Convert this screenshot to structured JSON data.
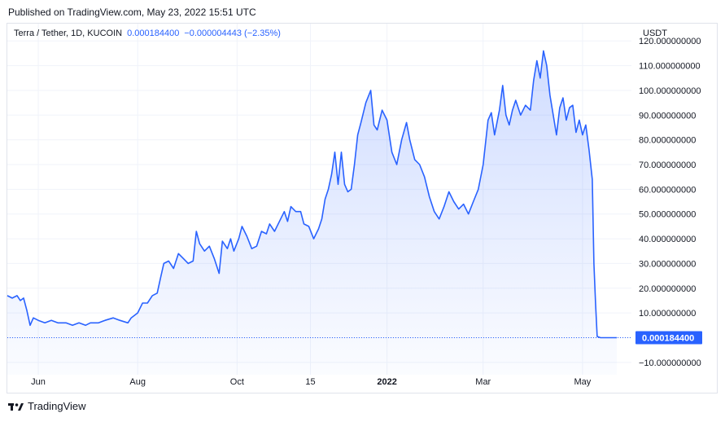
{
  "published": "Published on TradingView.com, May 23, 2022 15:51 UTC",
  "legend": {
    "symbol": "Terra / Tether, 1D, KUCOIN",
    "last": "0.000184400",
    "change": "−0.000004443 (−2.35%)"
  },
  "axis_unit": "USDT",
  "price_badge": "0.000184400",
  "footer_brand": "TradingView",
  "colors": {
    "line": "#2962ff",
    "badge": "#2962ff",
    "grid": "#f0f3fa"
  },
  "chart_data": {
    "type": "area",
    "title": "",
    "ylabel": "USDT",
    "ylim": [
      -15,
      127
    ],
    "y_ticks": [
      -10,
      0,
      10,
      20,
      30,
      40,
      50,
      60,
      70,
      80,
      90,
      100,
      110,
      120
    ],
    "y_tick_labels": [
      "−10.000000000",
      "",
      "10.000000000",
      "20.000000000",
      "30.000000000",
      "40.000000000",
      "50.000000000",
      "60.000000000",
      "70.000000000",
      "80.000000000",
      "90.000000000",
      "100.000000000",
      "110.000000000",
      "120.000000000"
    ],
    "x_ticks": [
      {
        "label": "Jun",
        "date": "2021-06-01",
        "bold": false
      },
      {
        "label": "Aug",
        "date": "2021-08-01",
        "bold": false
      },
      {
        "label": "Oct",
        "date": "2021-10-01",
        "bold": false
      },
      {
        "label": "15",
        "date": "2021-11-15",
        "bold": false
      },
      {
        "label": "2022",
        "date": "2022-01-01",
        "bold": true
      },
      {
        "label": "Mar",
        "date": "2022-03-01",
        "bold": false
      },
      {
        "label": "May",
        "date": "2022-05-01",
        "bold": false
      }
    ],
    "xlim": [
      "2021-05-13",
      "2022-05-31"
    ],
    "series": [
      {
        "points": [
          [
            "2021-05-13",
            17
          ],
          [
            "2021-05-16",
            16
          ],
          [
            "2021-05-19",
            17
          ],
          [
            "2021-05-21",
            15
          ],
          [
            "2021-05-23",
            16
          ],
          [
            "2021-05-25",
            11
          ],
          [
            "2021-05-27",
            5
          ],
          [
            "2021-05-29",
            8
          ],
          [
            "2021-06-01",
            7
          ],
          [
            "2021-06-05",
            6
          ],
          [
            "2021-06-09",
            7
          ],
          [
            "2021-06-13",
            6
          ],
          [
            "2021-06-18",
            6
          ],
          [
            "2021-06-22",
            5
          ],
          [
            "2021-06-26",
            6
          ],
          [
            "2021-06-30",
            5
          ],
          [
            "2021-07-03",
            6
          ],
          [
            "2021-07-08",
            6
          ],
          [
            "2021-07-12",
            7
          ],
          [
            "2021-07-17",
            8
          ],
          [
            "2021-07-21",
            7
          ],
          [
            "2021-07-26",
            6
          ],
          [
            "2021-07-28",
            8
          ],
          [
            "2021-08-01",
            10
          ],
          [
            "2021-08-04",
            14
          ],
          [
            "2021-08-07",
            14
          ],
          [
            "2021-08-10",
            17
          ],
          [
            "2021-08-13",
            18
          ],
          [
            "2021-08-15",
            24
          ],
          [
            "2021-08-17",
            30
          ],
          [
            "2021-08-20",
            31
          ],
          [
            "2021-08-23",
            28
          ],
          [
            "2021-08-26",
            34
          ],
          [
            "2021-08-29",
            32
          ],
          [
            "2021-09-01",
            30
          ],
          [
            "2021-09-04",
            31
          ],
          [
            "2021-09-06",
            43
          ],
          [
            "2021-09-08",
            38
          ],
          [
            "2021-09-11",
            35
          ],
          [
            "2021-09-14",
            37
          ],
          [
            "2021-09-17",
            32
          ],
          [
            "2021-09-20",
            26
          ],
          [
            "2021-09-22",
            39
          ],
          [
            "2021-09-25",
            36
          ],
          [
            "2021-09-27",
            40
          ],
          [
            "2021-09-29",
            35
          ],
          [
            "2021-10-02",
            40
          ],
          [
            "2021-10-04",
            45
          ],
          [
            "2021-10-07",
            41
          ],
          [
            "2021-10-10",
            36
          ],
          [
            "2021-10-13",
            37
          ],
          [
            "2021-10-16",
            43
          ],
          [
            "2021-10-19",
            42
          ],
          [
            "2021-10-21",
            46
          ],
          [
            "2021-10-24",
            43
          ],
          [
            "2021-10-27",
            47
          ],
          [
            "2021-10-30",
            51
          ],
          [
            "2021-11-01",
            47
          ],
          [
            "2021-11-03",
            53
          ],
          [
            "2021-11-06",
            51
          ],
          [
            "2021-11-09",
            51
          ],
          [
            "2021-11-11",
            46
          ],
          [
            "2021-11-14",
            45
          ],
          [
            "2021-11-17",
            40
          ],
          [
            "2021-11-20",
            44
          ],
          [
            "2021-11-22",
            48
          ],
          [
            "2021-11-24",
            56
          ],
          [
            "2021-11-26",
            60
          ],
          [
            "2021-11-28",
            66
          ],
          [
            "2021-11-30",
            75
          ],
          [
            "2021-12-02",
            62
          ],
          [
            "2021-12-04",
            75
          ],
          [
            "2021-12-06",
            62
          ],
          [
            "2021-12-08",
            59
          ],
          [
            "2021-12-10",
            60
          ],
          [
            "2021-12-12",
            70
          ],
          [
            "2021-12-14",
            82
          ],
          [
            "2021-12-16",
            87
          ],
          [
            "2021-12-19",
            95
          ],
          [
            "2021-12-22",
            100
          ],
          [
            "2021-12-24",
            86
          ],
          [
            "2021-12-26",
            84
          ],
          [
            "2021-12-29",
            92
          ],
          [
            "2022-01-01",
            88
          ],
          [
            "2022-01-04",
            75
          ],
          [
            "2022-01-07",
            70
          ],
          [
            "2022-01-10",
            80
          ],
          [
            "2022-01-13",
            87
          ],
          [
            "2022-01-15",
            80
          ],
          [
            "2022-01-18",
            72
          ],
          [
            "2022-01-21",
            70
          ],
          [
            "2022-01-24",
            65
          ],
          [
            "2022-01-27",
            57
          ],
          [
            "2022-01-30",
            51
          ],
          [
            "2022-02-02",
            48
          ],
          [
            "2022-02-05",
            53
          ],
          [
            "2022-02-08",
            59
          ],
          [
            "2022-02-11",
            55
          ],
          [
            "2022-02-14",
            52
          ],
          [
            "2022-02-17",
            54
          ],
          [
            "2022-02-20",
            50
          ],
          [
            "2022-02-23",
            55
          ],
          [
            "2022-02-26",
            60
          ],
          [
            "2022-03-01",
            70
          ],
          [
            "2022-03-04",
            88
          ],
          [
            "2022-03-06",
            91
          ],
          [
            "2022-03-08",
            82
          ],
          [
            "2022-03-11",
            92
          ],
          [
            "2022-03-13",
            102
          ],
          [
            "2022-03-15",
            90
          ],
          [
            "2022-03-17",
            86
          ],
          [
            "2022-03-19",
            92
          ],
          [
            "2022-03-21",
            96
          ],
          [
            "2022-03-24",
            90
          ],
          [
            "2022-03-27",
            94
          ],
          [
            "2022-03-30",
            92
          ],
          [
            "2022-04-01",
            104
          ],
          [
            "2022-04-03",
            112
          ],
          [
            "2022-04-05",
            105
          ],
          [
            "2022-04-07",
            116
          ],
          [
            "2022-04-09",
            110
          ],
          [
            "2022-04-11",
            98
          ],
          [
            "2022-04-13",
            90
          ],
          [
            "2022-04-15",
            82
          ],
          [
            "2022-04-17",
            93
          ],
          [
            "2022-04-19",
            97
          ],
          [
            "2022-04-21",
            88
          ],
          [
            "2022-04-23",
            93
          ],
          [
            "2022-04-25",
            94
          ],
          [
            "2022-04-27",
            83
          ],
          [
            "2022-04-29",
            88
          ],
          [
            "2022-05-01",
            82
          ],
          [
            "2022-05-03",
            86
          ],
          [
            "2022-05-05",
            76
          ],
          [
            "2022-05-07",
            64
          ],
          [
            "2022-05-08",
            30
          ],
          [
            "2022-05-09",
            14
          ],
          [
            "2022-05-10",
            0.5
          ],
          [
            "2022-05-12",
            0.0002
          ],
          [
            "2022-05-22",
            0.0002
          ]
        ]
      }
    ]
  }
}
